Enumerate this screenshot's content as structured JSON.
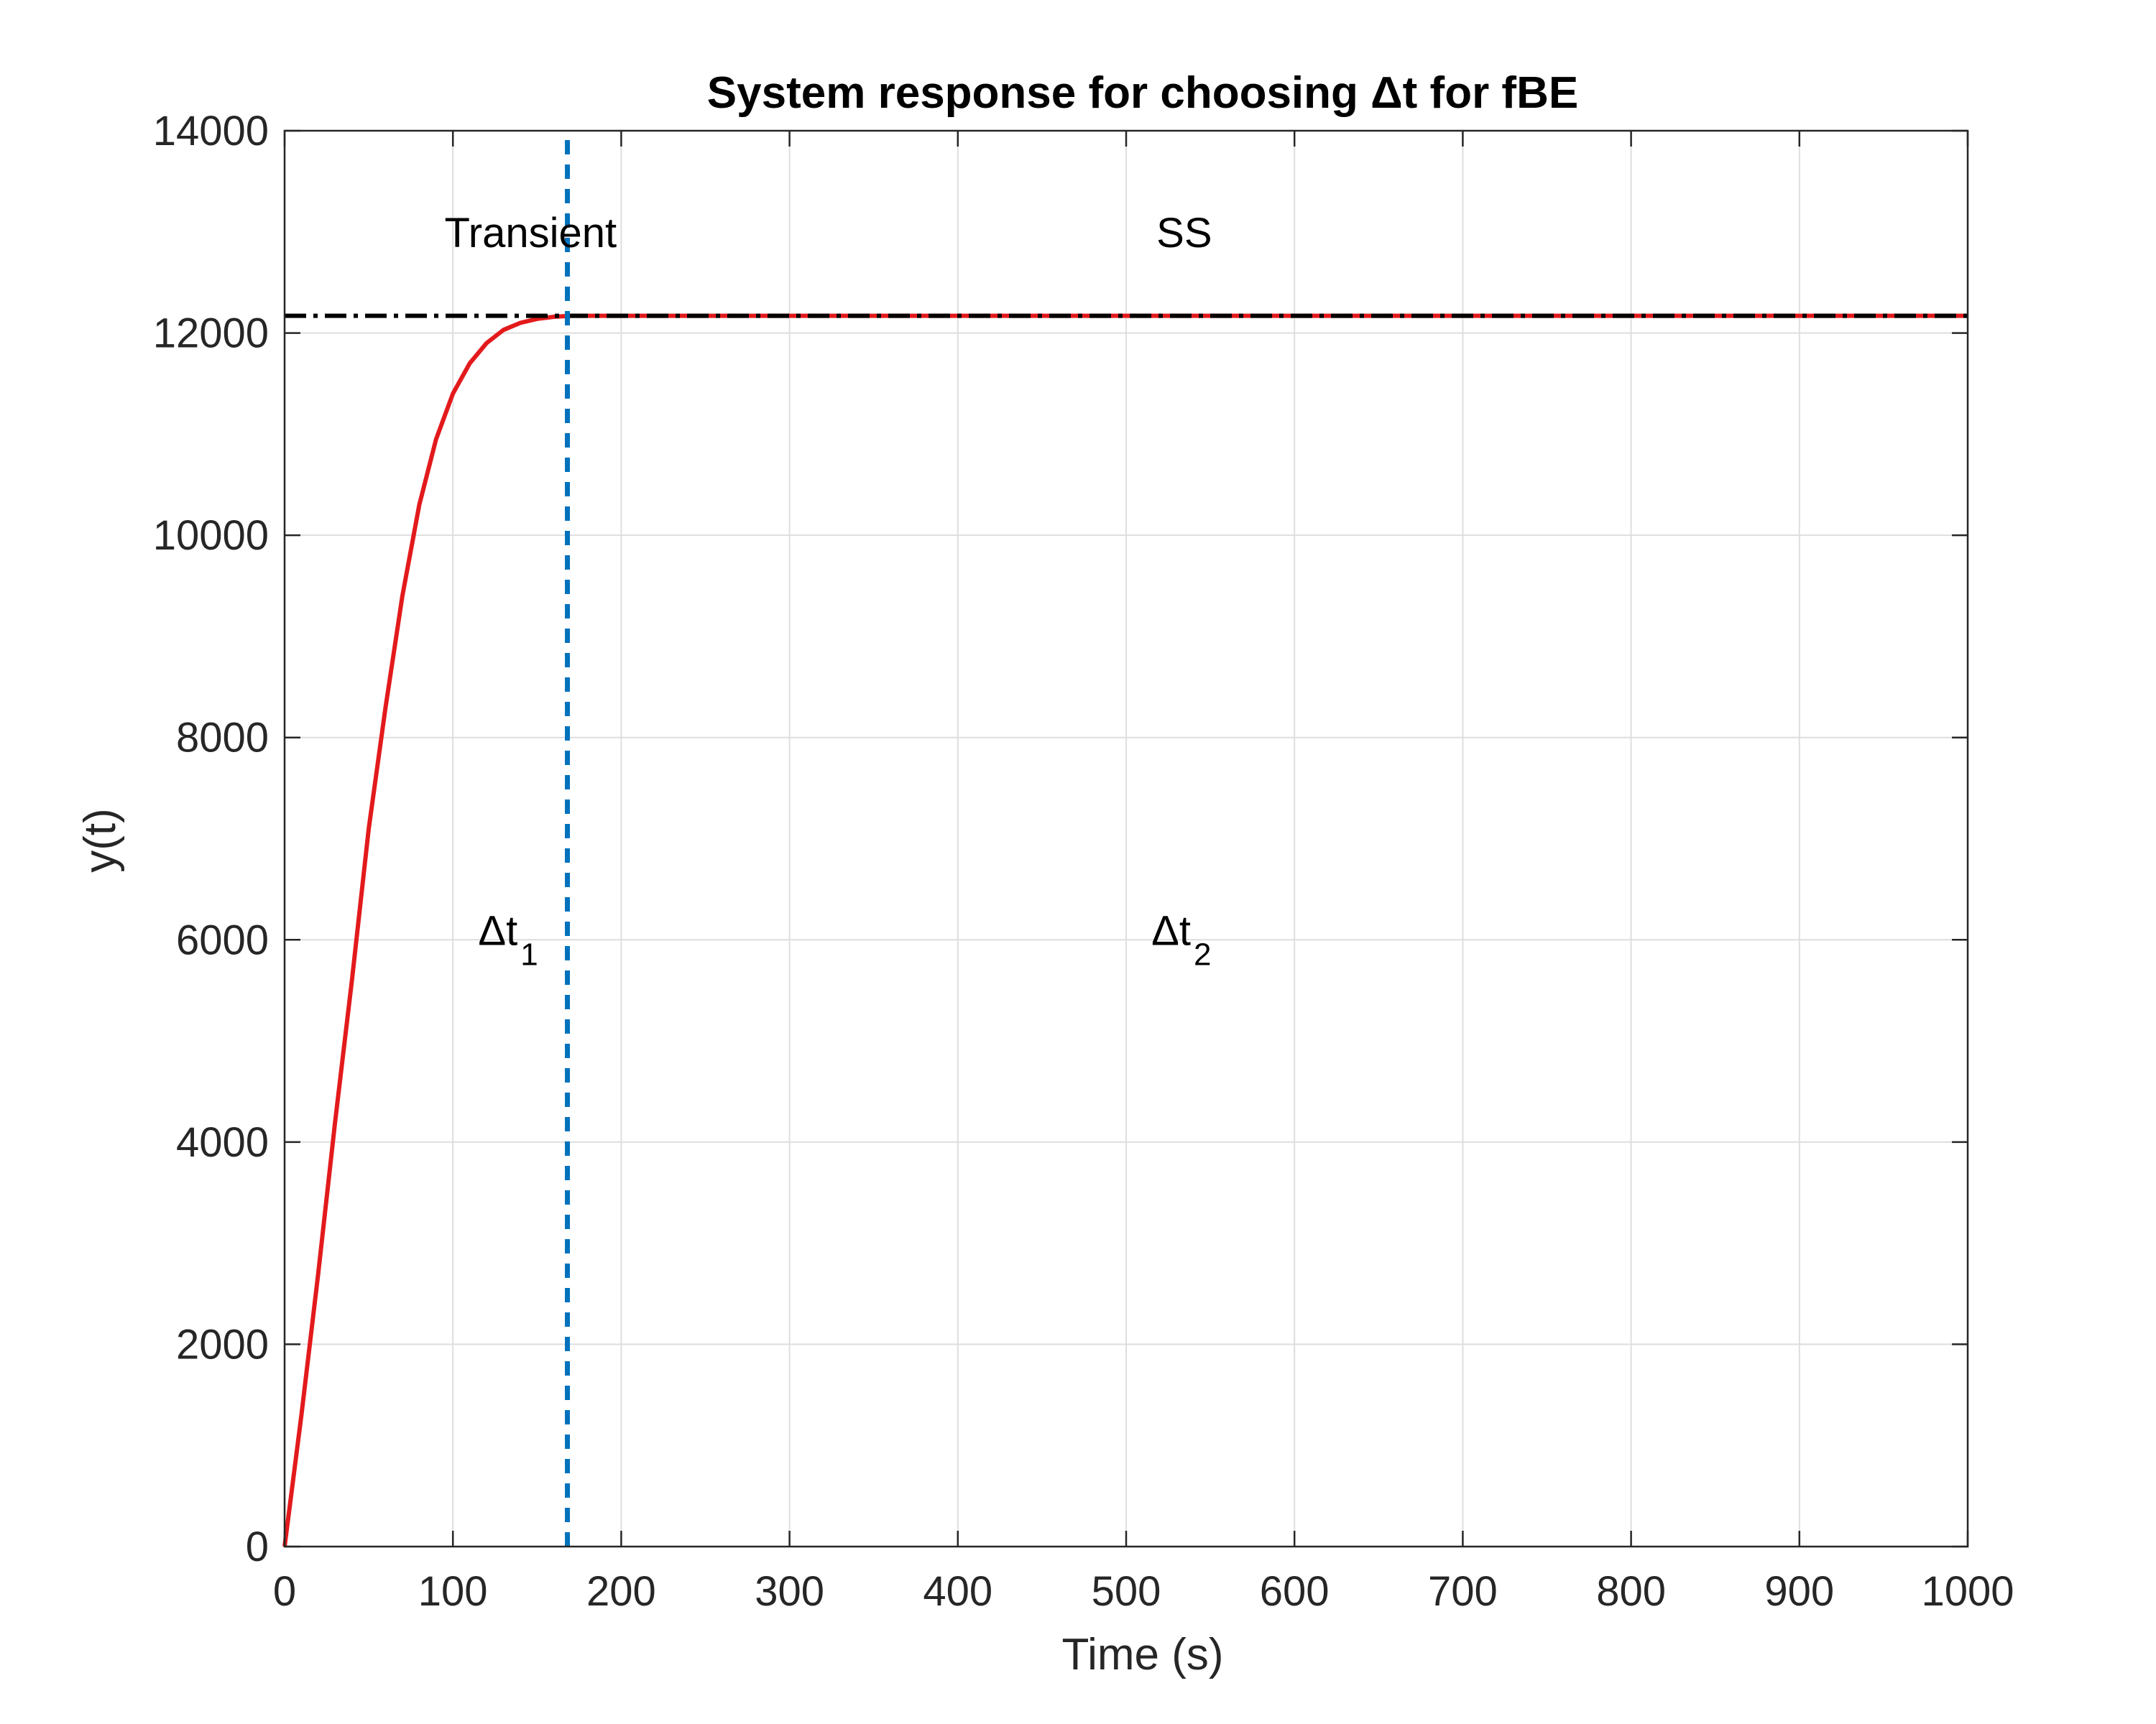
{
  "chart_data": {
    "type": "line",
    "title": "System response for choosing Δt for fBE",
    "xlabel": "Time (s)",
    "ylabel": "y(t)",
    "xlim": [
      0,
      1000
    ],
    "ylim": [
      0,
      14000
    ],
    "xticks": [
      "0",
      "100",
      "200",
      "300",
      "400",
      "500",
      "600",
      "700",
      "800",
      "900",
      "1000"
    ],
    "yticks": [
      "0",
      "2000",
      "4000",
      "6000",
      "8000",
      "10000",
      "12000",
      "14000"
    ],
    "grid": true,
    "legend": "none",
    "series": [
      {
        "style": "solid",
        "color": "#e31a1c",
        "x": [
          0,
          10,
          20,
          30,
          40,
          50,
          60,
          70,
          80,
          90,
          100,
          110,
          120,
          130,
          140,
          150,
          160,
          170,
          180,
          200,
          250,
          300,
          400,
          500,
          600,
          700,
          800,
          900,
          1000
        ],
        "y": [
          0,
          1300,
          2700,
          4200,
          5600,
          7100,
          8300,
          9400,
          10300,
          10950,
          11400,
          11700,
          11900,
          12030,
          12100,
          12140,
          12160,
          12170,
          12170,
          12170,
          12170,
          12170,
          12170,
          12170,
          12170,
          12170,
          12170,
          12170,
          12170
        ]
      },
      {
        "style": "dash-dot",
        "color": "#000000",
        "x": [
          0,
          1000
        ],
        "y": [
          12170,
          12170
        ]
      },
      {
        "style": "dashed",
        "color": "#0072bd",
        "x": [
          168,
          168
        ],
        "y": [
          0,
          14000
        ]
      }
    ],
    "annotations": {
      "transient": {
        "text": "Transient",
        "x": 95,
        "y": 12850
      },
      "ss": {
        "text": "SS",
        "x": 518,
        "y": 12850
      },
      "dt1": {
        "text": "Δt",
        "sub": "1",
        "x": 115,
        "y": 5950
      },
      "dt2": {
        "text": "Δt",
        "sub": "2",
        "x": 515,
        "y": 5950
      }
    },
    "colors": {
      "axis": "#262626",
      "grid": "#dedede"
    }
  }
}
